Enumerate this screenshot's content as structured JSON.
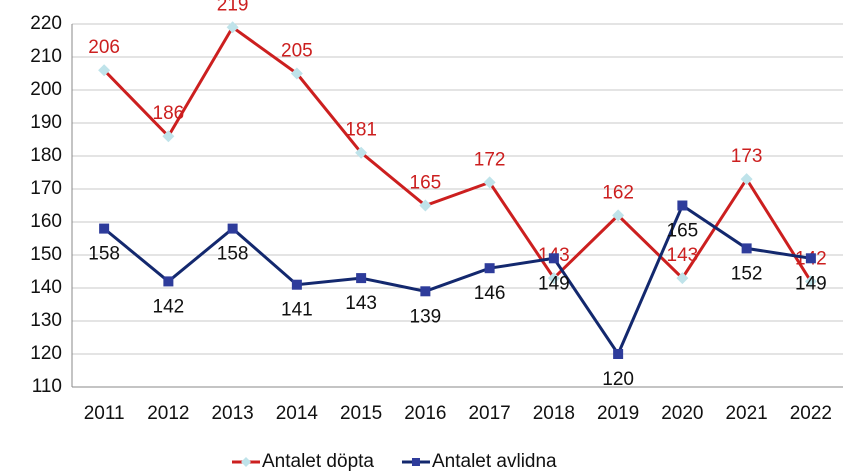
{
  "chart_data": {
    "type": "line",
    "categories": [
      "2011",
      "2012",
      "2013",
      "2014",
      "2015",
      "2016",
      "2017",
      "2018",
      "2019",
      "2020",
      "2021",
      "2022"
    ],
    "series": [
      {
        "name": "Antalet döpta",
        "color": "#cc1f1f",
        "marker_color": "#bfe3ea",
        "marker": "diamond",
        "values": [
          206,
          186,
          219,
          205,
          181,
          165,
          172,
          143,
          162,
          143,
          173,
          142
        ]
      },
      {
        "name": "Antalet avlidna",
        "color": "#13286e",
        "marker_color": "#2e3c9b",
        "marker": "square",
        "values": [
          158,
          142,
          158,
          141,
          143,
          139,
          146,
          149,
          120,
          165,
          152,
          149
        ]
      }
    ],
    "ylim": [
      110,
      220
    ],
    "yticks": [
      110,
      120,
      130,
      140,
      150,
      160,
      170,
      180,
      190,
      200,
      210,
      220
    ],
    "grid": true,
    "legend": "bottom"
  }
}
